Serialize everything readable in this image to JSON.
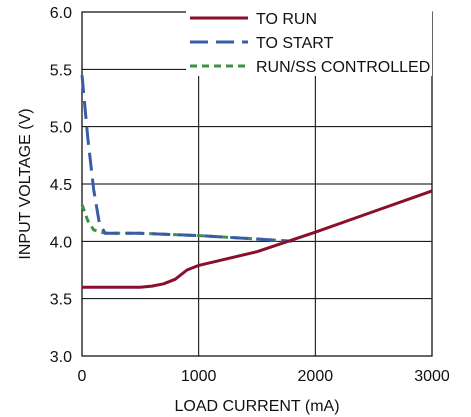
{
  "chart_data": {
    "type": "line",
    "title": "",
    "xlabel": "LOAD CURRENT (mA)",
    "ylabel": "INPUT VOLTAGE (V)",
    "xlim": [
      0,
      3000
    ],
    "ylim": [
      3.0,
      6.0
    ],
    "x_ticks": [
      "0",
      "1000",
      "2000",
      "3000"
    ],
    "y_ticks": [
      "3.0",
      "3.5",
      "4.0",
      "4.5",
      "5.0",
      "5.5",
      "6.0"
    ],
    "grid": true,
    "legend_position": "top-right",
    "series": [
      {
        "name": "TO RUN",
        "color": "#8b0f2c",
        "dash": "solid",
        "x": [
          0,
          500,
          600,
          700,
          800,
          850,
          900,
          1000,
          1500,
          2000,
          2500,
          3000
        ],
        "y": [
          3.6,
          3.6,
          3.61,
          3.63,
          3.67,
          3.71,
          3.75,
          3.79,
          3.91,
          4.08,
          4.26,
          4.44
        ]
      },
      {
        "name": "TO START",
        "color": "#3a5ba8",
        "dash": "long-dash",
        "x": [
          0,
          50,
          100,
          150,
          200,
          500,
          1000,
          1500,
          1800
        ],
        "y": [
          5.45,
          4.9,
          4.45,
          4.15,
          4.07,
          4.07,
          4.05,
          4.02,
          4.0
        ]
      },
      {
        "name": "RUN/SS CONTROLLED",
        "color": "#3c9142",
        "dash": "short-dash",
        "x": [
          0,
          50,
          100,
          200,
          500,
          1000,
          1500,
          1800
        ],
        "y": [
          4.32,
          4.18,
          4.1,
          4.07,
          4.07,
          4.05,
          4.02,
          4.0
        ]
      }
    ]
  }
}
